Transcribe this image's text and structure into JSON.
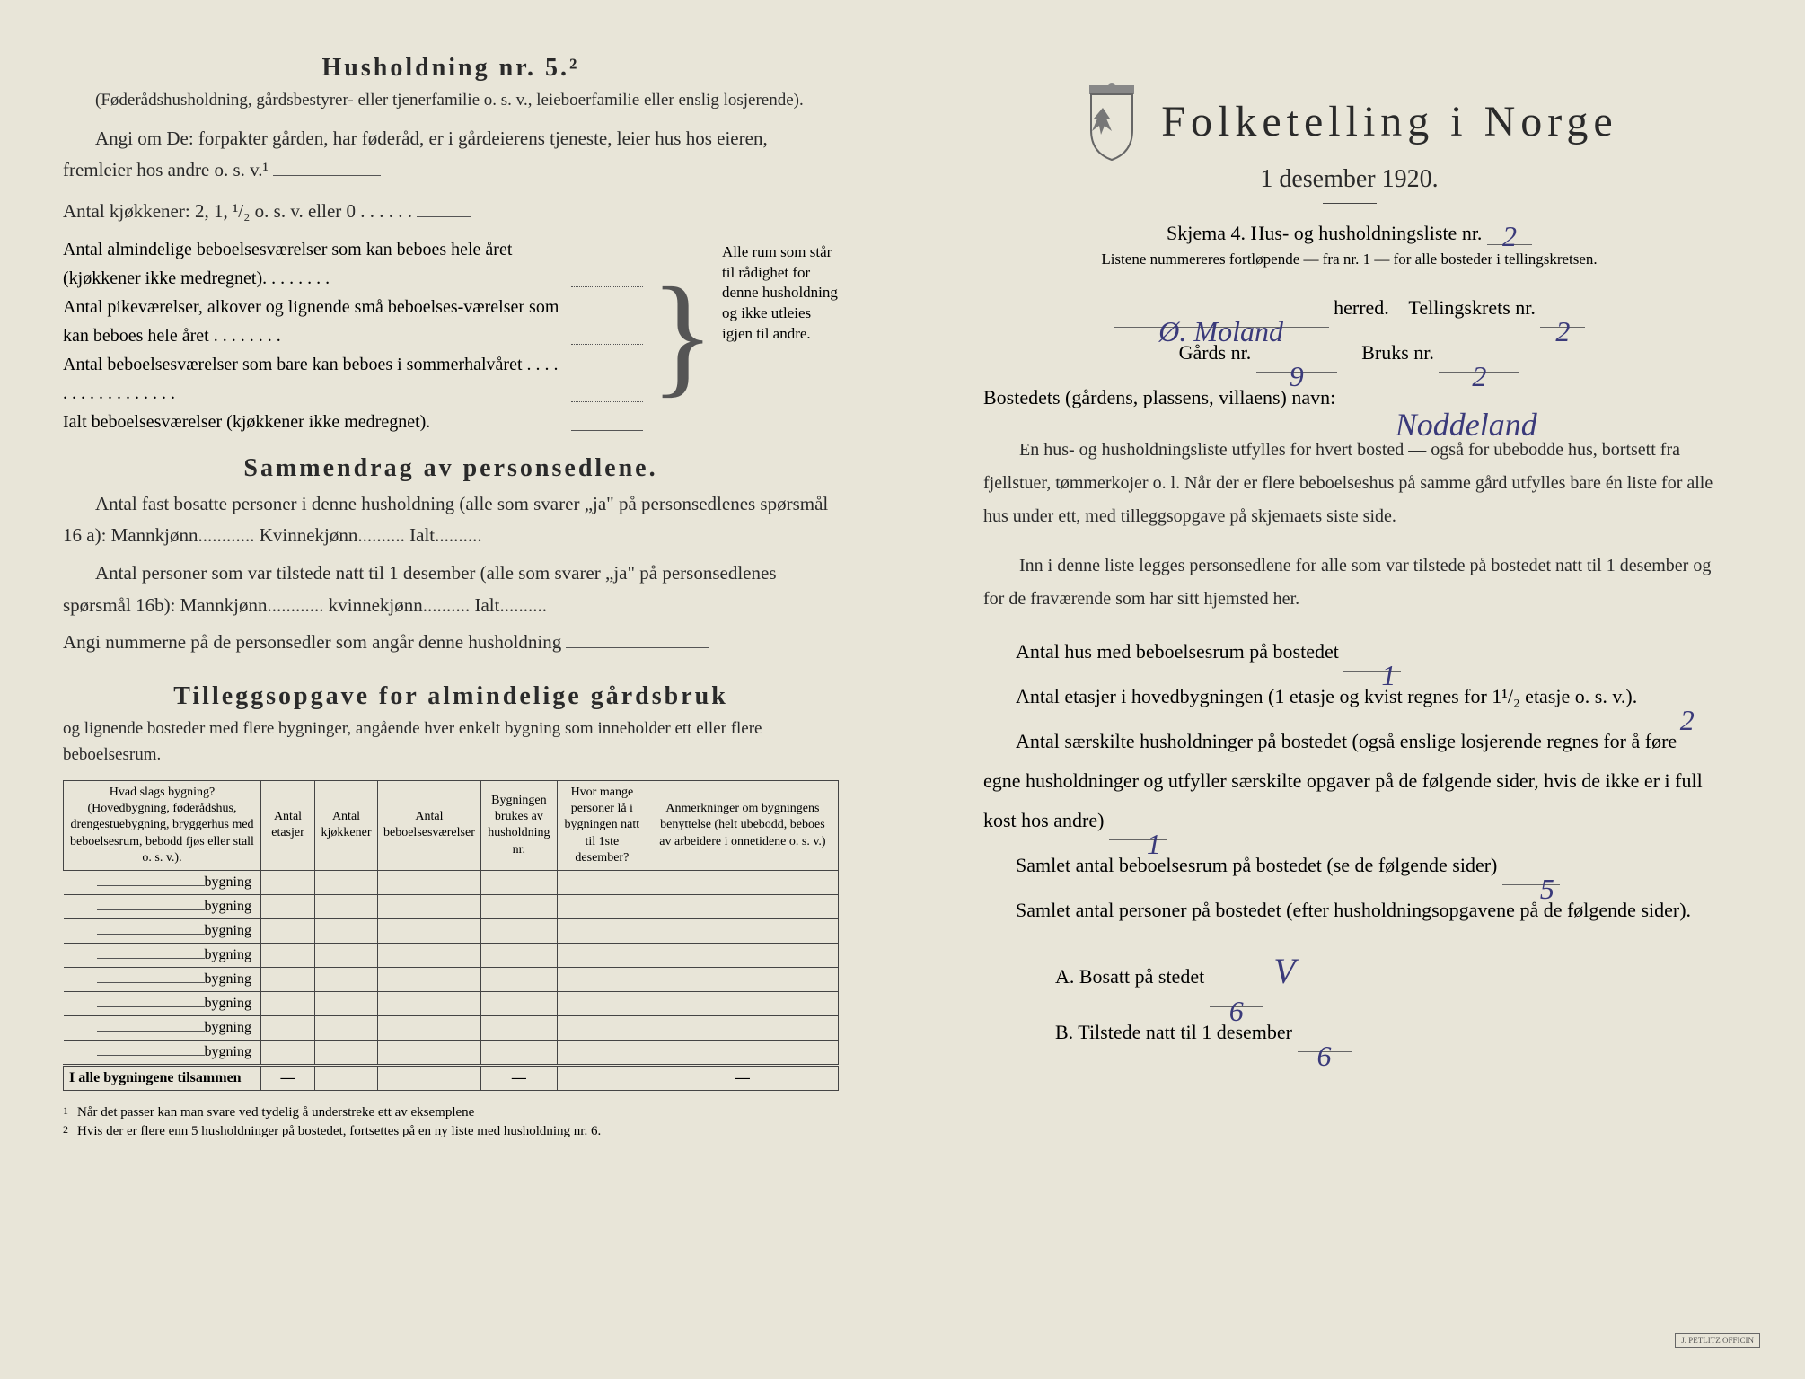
{
  "left": {
    "husholdning_title": "Husholdning nr. 5.²",
    "husholdning_sub": "(Føderådshusholdning, gårdsbestyrer- eller tjenerfamilie o. s. v., leieboerfamilie eller enslig losjerende).",
    "husholdning_q": "Angi om De: forpakter gården, har føderåd, er i gårdeierens tjeneste, leier hus hos eieren, fremleier hos andre o. s. v.¹",
    "kjokken_line": "Antal kjøkkener: 2, 1, ¹/₂ o. s. v. eller 0 . . . . . .",
    "brace_lines": [
      "Antal almindelige beboelsesværelser som kan beboes hele året (kjøkkener ikke medregnet). . . . . . . .",
      "Antal pikeværelser, alkover og lignende små beboelses-værelser som kan beboes hele året . . . . . . . .",
      "Antal beboelsesværelser som bare kan beboes i sommerhalvåret . . . . . . . . . . . . . . . . .",
      "Ialt beboelsesværelser (kjøkkener ikke medregnet)."
    ],
    "brace_right": "Alle rum som står til rådighet for denne husholdning og ikke utleies igjen til andre.",
    "sammendrag_title": "Sammendrag av personsedlene.",
    "sammendrag_p1": "Antal fast bosatte personer i denne husholdning (alle som svarer „ja\" på personsedlenes spørsmål 16 a): Mannkjønn............ Kvinnekjønn.......... Ialt..........",
    "sammendrag_p2": "Antal personer som var tilstede natt til 1 desember (alle som svarer „ja\" på personsedlenes spørsmål 16b): Mannkjønn............ kvinnekjønn.......... Ialt..........",
    "sammendrag_p3": "Angi nummerne på de personsedler som angår denne husholdning",
    "tillegg_title": "Tilleggsopgave for almindelige gårdsbruk",
    "tillegg_sub": "og lignende bosteder med flere bygninger, angående hver enkelt bygning som inneholder ett eller flere beboelsesrum.",
    "table": {
      "headers": [
        "Hvad slags bygning?\n(Hovedbygning, føderådshus, drengestuebygning, bryggerhus med beboelsesrum, bebodd fjøs eller stall o. s. v.).",
        "Antal etasjer",
        "Antal kjøkkener",
        "Antal beboelsesværelser",
        "Bygningen brukes av husholdning nr.",
        "Hvor mange personer lå i bygningen natt til 1ste desember?",
        "Anmerkninger om bygningens benyttelse (helt ubebodd, beboes av arbeidere i onnetidene o. s. v.)"
      ],
      "row_label": "bygning",
      "num_rows": 8,
      "footer": "I alle bygningene tilsammen"
    },
    "footnotes": [
      "Når det passer kan man svare ved tydelig å understreke ett av eksemplene",
      "Hvis der er flere enn 5 husholdninger på bostedet, fortsettes på en ny liste med husholdning nr. 6."
    ]
  },
  "right": {
    "title": "Folketelling i Norge",
    "date": "1 desember 1920.",
    "skjema": "Skjema 4.  Hus- og husholdningsliste nr.",
    "liste_nr": "2",
    "skjema_sub": "Listene nummereres fortløpende — fra nr. 1 — for alle bosteder i tellingskretsen.",
    "herred_val": "Ø. Moland",
    "herred_label": "herred.",
    "krets_label": "Tellingskrets nr.",
    "krets_val": "2",
    "gards_label": "Gårds nr.",
    "gards_val": "9",
    "bruks_label": "Bruks nr.",
    "bruks_val": "2",
    "bosted_label": "Bostedets (gårdens, plassens, villaens) navn:",
    "bosted_val": "Noddeland",
    "para1": "En hus- og husholdningsliste utfylles for hvert bosted — også for ubebodde hus, bortsett fra fjellstuer, tømmerkojer o. l. Når der er flere beboelseshus på samme gård utfylles bare én liste for alle hus under ett, med tilleggsopgave på skjemaets siste side.",
    "para2": "Inn i denne liste legges personsedlene for alle som var tilstede på bostedet natt til 1 desember og for de fraværende som har sitt hjemsted her.",
    "q1_label": "Antal hus med beboelsesrum på bostedet",
    "q1_val": "1",
    "q2_label_a": "Antal etasjer i hovedbygningen (1 etasje og kvist regnes for 1¹/₂ etasje o. s. v.).",
    "q2_val": "2",
    "q3_label": "Antal særskilte husholdninger på bostedet (også enslige losjerende regnes for å føre egne husholdninger og utfyller særskilte opgaver på de følgende sider, hvis de ikke er i full kost hos andre)",
    "q3_val": "1",
    "q4_label": "Samlet antal beboelsesrum på bostedet (se de følgende sider)",
    "q4_val": "5",
    "q5_label": "Samlet antal personer på bostedet (efter husholdningsopgavene på de følgende sider).",
    "qA_label": "A.  Bosatt på stedet",
    "qA_val": "6",
    "qA_check": "V",
    "qB_label": "B.  Tilstede natt til 1 desember",
    "qB_val": "6"
  }
}
